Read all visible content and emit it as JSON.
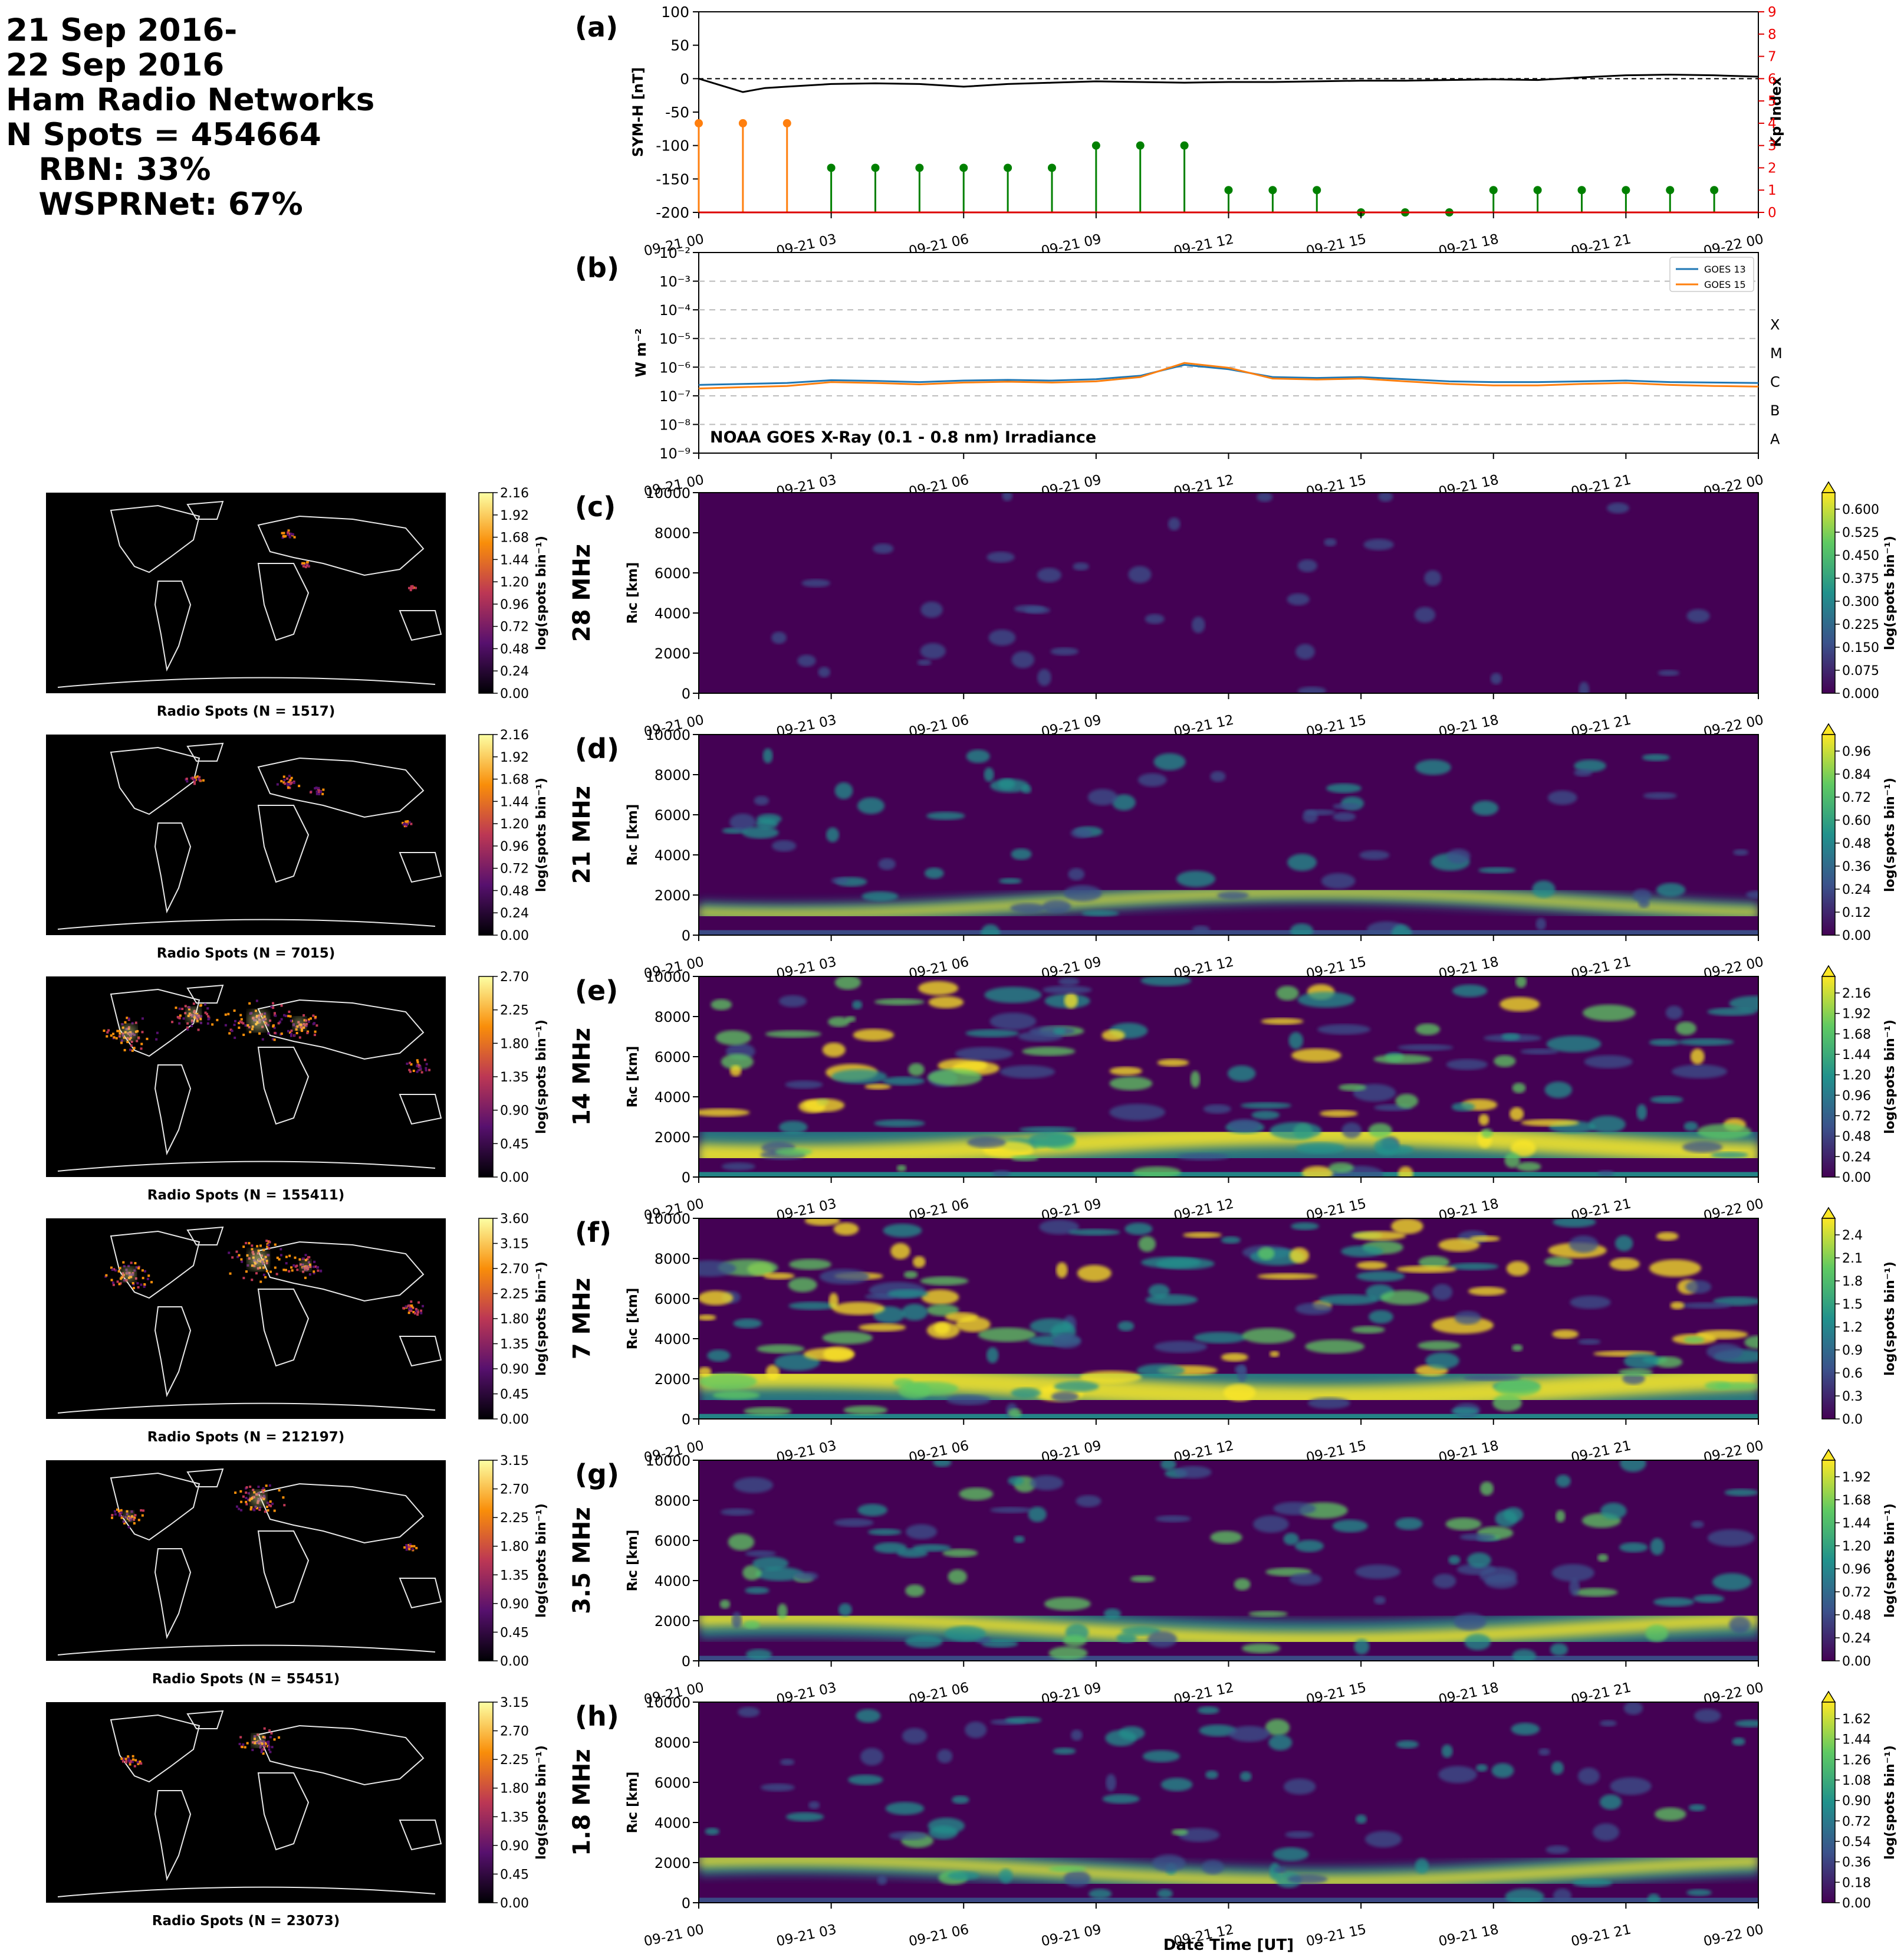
{
  "header": {
    "lines": [
      "21 Sep 2016-",
      "22 Sep 2016",
      "Ham Radio Networks",
      "N Spots = 454664",
      "   RBN: 33%",
      "   WSPRNet: 67%"
    ]
  },
  "time_ticks": [
    "09-21 00",
    "09-21 03",
    "09-21 06",
    "09-21 09",
    "09-21 12",
    "09-21 15",
    "09-21 18",
    "09-21 21",
    "09-22 00"
  ],
  "x_axis_label": "Date Time [UT]",
  "chart_data": [
    {
      "id": "a",
      "panel_label": "(a)",
      "type": "line",
      "ylabel": "SYM-H [nT]",
      "ylim": [
        -200,
        100
      ],
      "yticks": [
        100,
        50,
        0,
        -50,
        -100,
        -150,
        -200
      ],
      "y2label": "Kp Index",
      "y2lim": [
        0,
        9
      ],
      "y2ticks": [
        0,
        1,
        2,
        3,
        4,
        5,
        6,
        7,
        8,
        9
      ],
      "reference_line": 0,
      "symh": {
        "x_hours": [
          0,
          0.5,
          1,
          1.5,
          2,
          3,
          4,
          5,
          6,
          7,
          8,
          9,
          10,
          11,
          12,
          13,
          14,
          15,
          16,
          17,
          18,
          19,
          20,
          21,
          22,
          23,
          24
        ],
        "values": [
          0,
          -10,
          -20,
          -14,
          -12,
          -8,
          -7,
          -8,
          -12,
          -8,
          -6,
          -4,
          -5,
          -6,
          -5,
          -5,
          -4,
          -3,
          -3,
          -2,
          -1,
          -2,
          2,
          5,
          6,
          5,
          3
        ]
      },
      "kp": {
        "x_hours": [
          0,
          1,
          2,
          3,
          4,
          5,
          6,
          7,
          8,
          9,
          10,
          11,
          12,
          13,
          14,
          15,
          16,
          17,
          18,
          19,
          20,
          21,
          22,
          23
        ],
        "values": [
          4,
          4,
          4,
          2,
          2,
          2,
          2,
          2,
          2,
          3,
          3,
          3,
          1,
          1,
          1,
          0,
          0,
          0,
          1,
          1,
          1,
          1,
          1,
          1
        ],
        "colors": [
          "#ff7f0e",
          "#ff7f0e",
          "#ff7f0e",
          "#008000",
          "#008000",
          "#008000",
          "#008000",
          "#008000",
          "#008000",
          "#008000",
          "#008000",
          "#008000",
          "#008000",
          "#008000",
          "#008000",
          "#008000",
          "#008000",
          "#008000",
          "#008000",
          "#008000",
          "#008000",
          "#008000",
          "#008000",
          "#008000"
        ]
      }
    },
    {
      "id": "b",
      "panel_label": "(b)",
      "type": "line",
      "scale": "log",
      "ylabel": "W m⁻²",
      "ylim": [
        1e-09,
        0.01
      ],
      "ytick_labels": [
        "10⁻⁹",
        "10⁻⁸",
        "10⁻⁷",
        "10⁻⁶",
        "10⁻⁵",
        "10⁻⁴",
        "10⁻³",
        "10⁻²"
      ],
      "flare_classes": [
        "A",
        "B",
        "C",
        "M",
        "X"
      ],
      "annotation": "NOAA GOES X-Ray (0.1 - 0.8 nm) Irradiance",
      "legend_position": "top-right",
      "series": [
        {
          "name": "GOES 13",
          "color": "#1f77b4",
          "x_hours": [
            0,
            1,
            2,
            3,
            4,
            5,
            6,
            7,
            8,
            9,
            10,
            11,
            12,
            13,
            14,
            15,
            16,
            17,
            18,
            19,
            20,
            21,
            22,
            23,
            24
          ],
          "values": [
            2.4e-07,
            2.6e-07,
            2.8e-07,
            3.5e-07,
            3.3e-07,
            3e-07,
            3.4e-07,
            3.6e-07,
            3.4e-07,
            3.8e-07,
            5e-07,
            1.2e-06,
            8.5e-07,
            4.5e-07,
            4.2e-07,
            4.5e-07,
            3.8e-07,
            3.2e-07,
            3e-07,
            3e-07,
            3.2e-07,
            3.4e-07,
            3e-07,
            2.9e-07,
            2.8e-07
          ]
        },
        {
          "name": "GOES 15",
          "color": "#ff7f0e",
          "x_hours": [
            0,
            1,
            2,
            3,
            4,
            5,
            6,
            7,
            8,
            9,
            10,
            11,
            12,
            13,
            14,
            15,
            16,
            17,
            18,
            19,
            20,
            21,
            22,
            23,
            24
          ],
          "values": [
            1.8e-07,
            2e-07,
            2.2e-07,
            3e-07,
            2.8e-07,
            2.5e-07,
            2.9e-07,
            3.1e-07,
            2.9e-07,
            3.2e-07,
            4.5e-07,
            1.4e-06,
            9.5e-07,
            4e-07,
            3.7e-07,
            4e-07,
            3.2e-07,
            2.6e-07,
            2.3e-07,
            2.3e-07,
            2.6e-07,
            2.8e-07,
            2.4e-07,
            2.2e-07,
            2.1e-07
          ]
        }
      ]
    }
  ],
  "bands": [
    {
      "panel_label": "(c)",
      "band": "28 MHz",
      "ylabel": "Rₗc [km]",
      "cbar_label": "log(spots bin⁻¹)",
      "map_caption": "Radio Spots (N = 1517)",
      "map_ticks": [
        "2.16",
        "1.92",
        "1.68",
        "1.44",
        "1.20",
        "0.96",
        "0.72",
        "0.48",
        "0.24",
        "0.00"
      ],
      "rgc_ticks": [
        "0.600",
        "0.525",
        "0.450",
        "0.375",
        "0.300",
        "0.225",
        "0.150",
        "0.075",
        "0.000"
      ],
      "activity": 0.12,
      "map_hotspots": [
        [
          410,
          70,
          6
        ],
        [
          440,
          120,
          4
        ],
        [
          620,
          160,
          3
        ]
      ]
    },
    {
      "panel_label": "(d)",
      "band": "21 MHz",
      "ylabel": "Rₗc [km]",
      "cbar_label": "log(spots bin⁻¹)",
      "map_caption": "Radio Spots (N = 7015)",
      "map_ticks": [
        "2.16",
        "1.92",
        "1.68",
        "1.44",
        "1.20",
        "0.96",
        "0.72",
        "0.48",
        "0.24",
        "0.00"
      ],
      "rgc_ticks": [
        "0.96",
        "0.84",
        "0.72",
        "0.60",
        "0.48",
        "0.36",
        "0.24",
        "0.12",
        "0.00"
      ],
      "activity": 0.35,
      "map_hotspots": [
        [
          250,
          75,
          7
        ],
        [
          410,
          80,
          9
        ],
        [
          460,
          95,
          6
        ],
        [
          610,
          150,
          4
        ]
      ]
    },
    {
      "panel_label": "(e)",
      "band": "14 MHz",
      "ylabel": "Rₗc [km]",
      "cbar_label": "log(spots bin⁻¹)",
      "map_caption": "Radio Spots (N = 155411)",
      "map_ticks": [
        "2.70",
        "2.25",
        "1.80",
        "1.35",
        "0.90",
        "0.45",
        "0.00"
      ],
      "rgc_ticks": [
        "2.16",
        "1.92",
        "1.68",
        "1.44",
        "1.20",
        "0.96",
        "0.72",
        "0.48",
        "0.24",
        "0.00"
      ],
      "activity": 0.9,
      "map_hotspots": [
        [
          140,
          95,
          22
        ],
        [
          250,
          65,
          20
        ],
        [
          360,
          75,
          28
        ],
        [
          430,
          80,
          18
        ],
        [
          630,
          150,
          10
        ]
      ]
    },
    {
      "panel_label": "(f)",
      "band": "7 MHz",
      "ylabel": "Rₗc [km]",
      "cbar_label": "log(spots bin⁻¹)",
      "map_caption": "Radio Spots (N = 212197)",
      "map_ticks": [
        "3.60",
        "3.15",
        "2.70",
        "2.25",
        "1.80",
        "1.35",
        "0.90",
        "0.45",
        "0.00"
      ],
      "rgc_ticks": [
        "2.4",
        "2.1",
        "1.8",
        "1.5",
        "1.2",
        "0.9",
        "0.6",
        "0.3",
        "0.0"
      ],
      "activity": 1.0,
      "map_hotspots": [
        [
          140,
          95,
          20
        ],
        [
          360,
          70,
          28
        ],
        [
          440,
          80,
          15
        ],
        [
          620,
          150,
          10
        ]
      ]
    },
    {
      "panel_label": "(g)",
      "band": "3.5 MHz",
      "ylabel": "Rₗc [km]",
      "cbar_label": "log(spots bin⁻¹)",
      "map_caption": "Radio Spots (N = 55451)",
      "map_ticks": [
        "3.15",
        "2.70",
        "2.25",
        "1.80",
        "1.35",
        "0.90",
        "0.45",
        "0.00"
      ],
      "rgc_ticks": [
        "1.92",
        "1.68",
        "1.44",
        "1.20",
        "0.96",
        "0.72",
        "0.48",
        "0.24",
        "0.00"
      ],
      "activity": 0.6,
      "map_hotspots": [
        [
          140,
          95,
          14
        ],
        [
          360,
          65,
          22
        ],
        [
          615,
          145,
          6
        ]
      ]
    },
    {
      "panel_label": "(h)",
      "band": "1.8 MHz",
      "ylabel": "Rₗc [km]",
      "cbar_label": "log(spots bin⁻¹)",
      "map_caption": "Radio Spots (N = 23073)",
      "map_ticks": [
        "3.15",
        "2.70",
        "2.25",
        "1.80",
        "1.35",
        "0.90",
        "0.45",
        "0.00"
      ],
      "rgc_ticks": [
        "1.62",
        "1.44",
        "1.26",
        "1.08",
        "0.90",
        "0.72",
        "0.54",
        "0.36",
        "0.18",
        "0.00"
      ],
      "activity": 0.45,
      "map_hotspots": [
        [
          140,
          100,
          9
        ],
        [
          360,
          65,
          18
        ]
      ]
    }
  ],
  "rgc_yticks": [
    "10000",
    "8000",
    "6000",
    "4000",
    "2000",
    "0"
  ]
}
